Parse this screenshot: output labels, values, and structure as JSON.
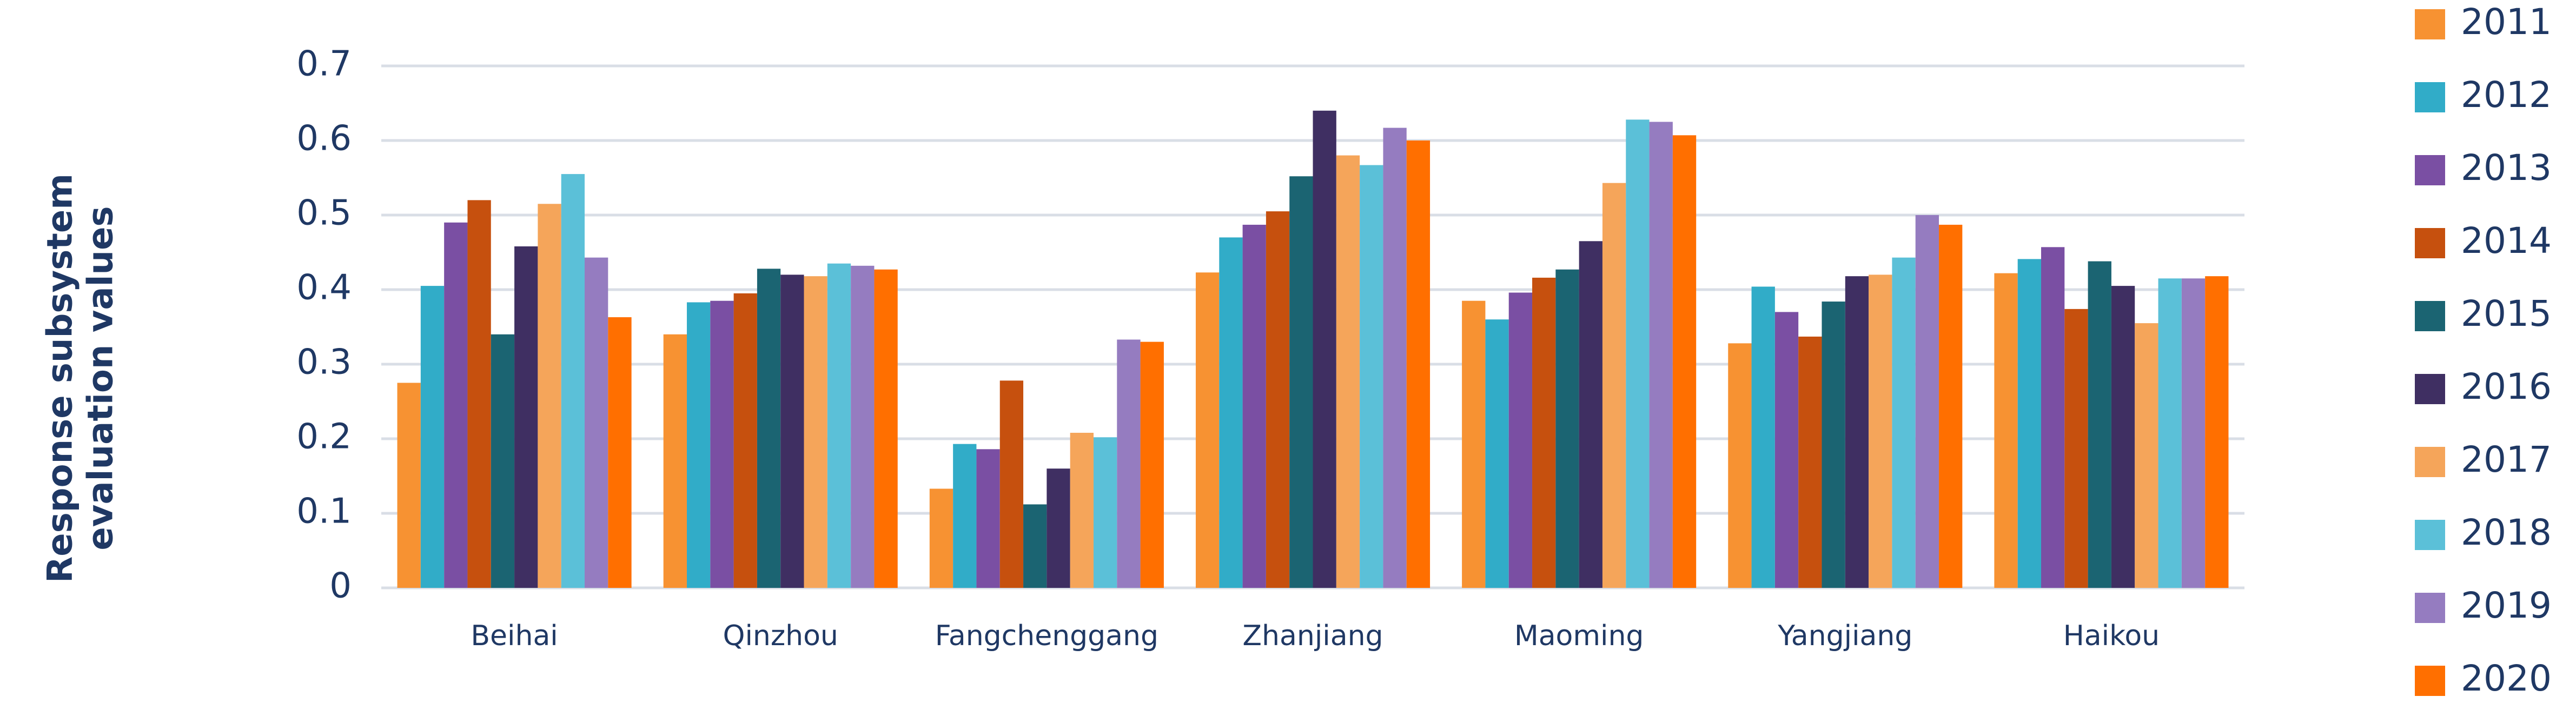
{
  "chart_data": {
    "type": "bar",
    "y_label": [
      "Response subsystem",
      "evaluation values"
    ],
    "categories": [
      "Beihai",
      "Qinzhou",
      "Fangchenggang",
      "Zhanjiang",
      "Maoming",
      "Yangjiang",
      "Haikou"
    ],
    "series": [
      {
        "name": "2011",
        "color": "#f79232",
        "values": [
          0.275,
          0.34,
          0.133,
          0.423,
          0.385,
          0.328,
          0.422
        ]
      },
      {
        "name": "2012",
        "color": "#31acc8",
        "values": [
          0.405,
          0.383,
          0.193,
          0.47,
          0.36,
          0.404,
          0.441
        ]
      },
      {
        "name": "2013",
        "color": "#7a4fa3",
        "values": [
          0.49,
          0.385,
          0.186,
          0.487,
          0.396,
          0.37,
          0.457
        ]
      },
      {
        "name": "2014",
        "color": "#c6500e",
        "values": [
          0.52,
          0.395,
          0.278,
          0.505,
          0.416,
          0.337,
          0.374
        ]
      },
      {
        "name": "2015",
        "color": "#1b6472",
        "values": [
          0.34,
          0.428,
          0.112,
          0.552,
          0.427,
          0.384,
          0.438
        ]
      },
      {
        "name": "2016",
        "color": "#3f2f62",
        "values": [
          0.458,
          0.42,
          0.16,
          0.64,
          0.465,
          0.418,
          0.405
        ]
      },
      {
        "name": "2017",
        "color": "#f5a55a",
        "values": [
          0.515,
          0.418,
          0.208,
          0.58,
          0.543,
          0.42,
          0.355
        ]
      },
      {
        "name": "2018",
        "color": "#5bc0d8",
        "values": [
          0.555,
          0.435,
          0.202,
          0.567,
          0.628,
          0.443,
          0.415
        ]
      },
      {
        "name": "2019",
        "color": "#957cc0",
        "values": [
          0.443,
          0.432,
          0.333,
          0.617,
          0.625,
          0.5,
          0.415
        ]
      },
      {
        "name": "2020",
        "color": "#ff6f00",
        "values": [
          0.363,
          0.427,
          0.33,
          0.6,
          0.607,
          0.487,
          0.418
        ]
      }
    ],
    "ylim": [
      0,
      0.7
    ],
    "yticks": [
      0,
      0.1,
      0.2,
      0.3,
      0.4,
      0.5,
      0.6,
      0.7
    ],
    "grid": true,
    "legend": "right"
  }
}
